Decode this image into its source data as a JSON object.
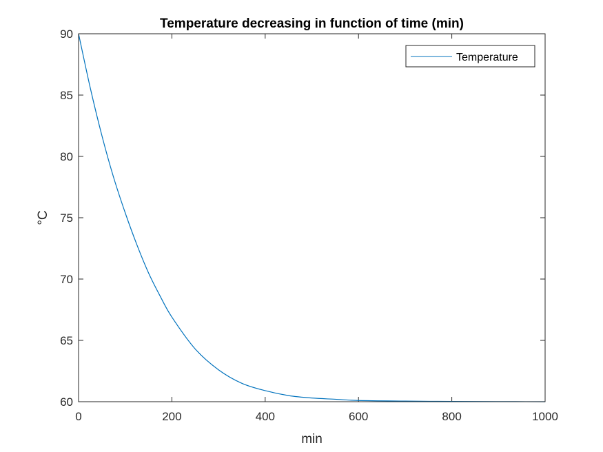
{
  "chart_data": {
    "type": "line",
    "title": "Temperature decreasing in function of time (min)",
    "xlabel": "min",
    "ylabel": "°C",
    "xlim": [
      0,
      1000
    ],
    "ylim": [
      60,
      90
    ],
    "xticks": [
      0,
      200,
      400,
      600,
      800,
      1000
    ],
    "yticks": [
      60,
      65,
      70,
      75,
      80,
      85,
      90
    ],
    "grid": false,
    "legend_position": "top-right",
    "series": [
      {
        "name": "Temperature",
        "color": "#0072BD",
        "x": [
          0,
          25,
          50,
          75,
          100,
          125,
          150,
          175,
          200,
          250,
          300,
          350,
          400,
          450,
          500,
          550,
          600,
          700,
          800,
          900,
          1000
        ],
        "y": [
          90,
          85.6,
          81.7,
          78.3,
          75.4,
          72.8,
          70.5,
          68.6,
          66.9,
          64.3,
          62.6,
          61.5,
          60.9,
          60.5,
          60.3,
          60.2,
          60.1,
          60.05,
          60.02,
          60.01,
          60.0
        ]
      }
    ]
  }
}
